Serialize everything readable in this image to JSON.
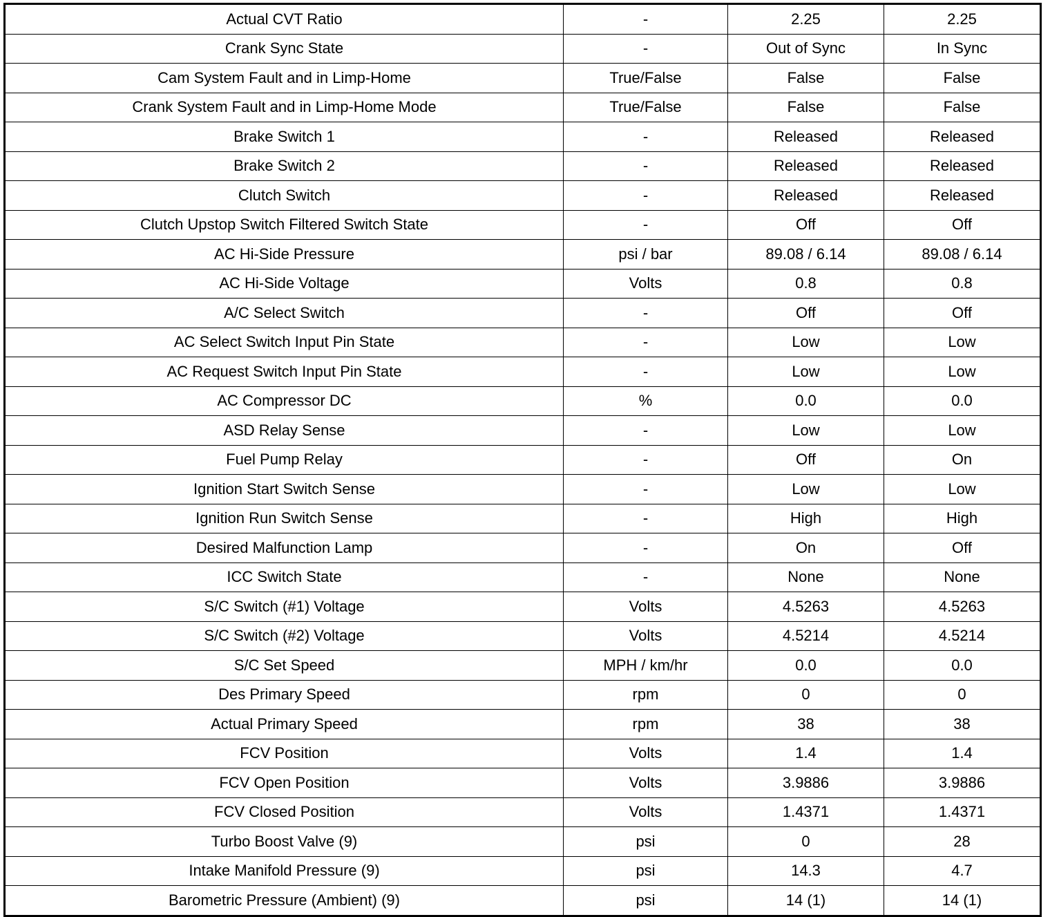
{
  "table": {
    "rows": [
      [
        "Actual CVT Ratio",
        "-",
        "2.25",
        "2.25"
      ],
      [
        "Crank Sync State",
        "-",
        "Out of Sync",
        "In Sync"
      ],
      [
        "Cam System Fault and in Limp-Home",
        "True/False",
        "False",
        "False"
      ],
      [
        "Crank System Fault and in Limp-Home Mode",
        "True/False",
        "False",
        "False"
      ],
      [
        "Brake Switch 1",
        "-",
        "Released",
        "Released"
      ],
      [
        "Brake Switch 2",
        "-",
        "Released",
        "Released"
      ],
      [
        "Clutch Switch",
        "-",
        "Released",
        "Released"
      ],
      [
        "Clutch Upstop Switch Filtered Switch State",
        "-",
        "Off",
        "Off"
      ],
      [
        "AC Hi-Side Pressure",
        "psi / bar",
        "89.08 / 6.14",
        "89.08 / 6.14"
      ],
      [
        "AC Hi-Side Voltage",
        "Volts",
        "0.8",
        "0.8"
      ],
      [
        "A/C Select Switch",
        "-",
        "Off",
        "Off"
      ],
      [
        "AC Select Switch Input Pin State",
        "-",
        "Low",
        "Low"
      ],
      [
        "AC Request Switch Input Pin State",
        "-",
        "Low",
        "Low"
      ],
      [
        "AC Compressor DC",
        "%",
        "0.0",
        "0.0"
      ],
      [
        "ASD Relay Sense",
        "-",
        "Low",
        "Low"
      ],
      [
        "Fuel Pump Relay",
        "-",
        "Off",
        "On"
      ],
      [
        "Ignition Start Switch Sense",
        "-",
        "Low",
        "Low"
      ],
      [
        "Ignition Run Switch Sense",
        "-",
        "High",
        "High"
      ],
      [
        "Desired Malfunction Lamp",
        "-",
        "On",
        "Off"
      ],
      [
        "ICC Switch State",
        "-",
        "None",
        "None"
      ],
      [
        "S/C Switch (#1) Voltage",
        "Volts",
        "4.5263",
        "4.5263"
      ],
      [
        "S/C Switch (#2) Voltage",
        "Volts",
        "4.5214",
        "4.5214"
      ],
      [
        "S/C Set Speed",
        "MPH / km/hr",
        "0.0",
        "0.0"
      ],
      [
        "Des Primary Speed",
        "rpm",
        "0",
        "0"
      ],
      [
        "Actual Primary Speed",
        "rpm",
        "38",
        "38"
      ],
      [
        "FCV Position",
        "Volts",
        "1.4",
        "1.4"
      ],
      [
        "FCV Open Position",
        "Volts",
        "3.9886",
        "3.9886"
      ],
      [
        "FCV Closed Position",
        "Volts",
        "1.4371",
        "1.4371"
      ],
      [
        "Turbo Boost Valve (9)",
        "psi",
        "0",
        "28"
      ],
      [
        "Intake Manifold Pressure (9)",
        "psi",
        "14.3",
        "4.7"
      ],
      [
        "Barometric Pressure (Ambient) (9)",
        "psi",
        "14 (1)",
        "14 (1)"
      ]
    ]
  }
}
